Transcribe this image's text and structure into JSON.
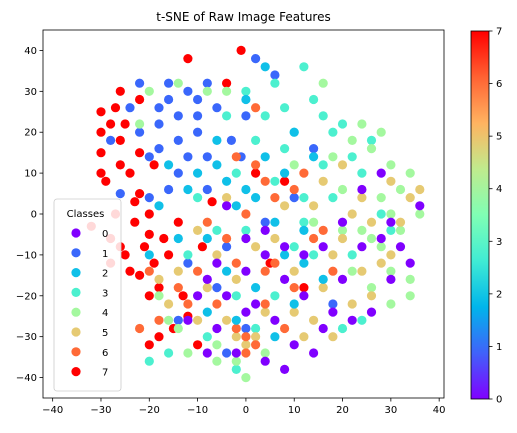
{
  "chart_data": {
    "type": "scatter",
    "title": "t-SNE of Raw Image Features",
    "xlabel": "",
    "ylabel": "",
    "xlim": [
      -42,
      41
    ],
    "ylim": [
      -45,
      45
    ],
    "x_ticks": [
      -40,
      -30,
      -20,
      -10,
      0,
      10,
      20,
      30,
      40
    ],
    "y_ticks": [
      -40,
      -30,
      -20,
      -10,
      0,
      10,
      20,
      30,
      40
    ],
    "grid": false,
    "colormap": "rainbow",
    "colorbar": {
      "min": 0,
      "max": 7,
      "ticks": [
        0,
        1,
        2,
        3,
        4,
        5,
        6,
        7
      ],
      "stops": [
        "#8000ff",
        "#4062fa",
        "#00b5eb",
        "#40ecd4",
        "#80ffb4",
        "#c0eb8d",
        "#ffb360",
        "#ff6232",
        "#ff0000"
      ]
    },
    "legend": {
      "title": "Classes",
      "placement": "lower-left",
      "entries": [
        {
          "label": "0",
          "color": "#8000ff"
        },
        {
          "label": "1",
          "color": "#3a67fb"
        },
        {
          "label": "2",
          "color": "#10c0e8"
        },
        {
          "label": "3",
          "color": "#4cf0cf"
        },
        {
          "label": "4",
          "color": "#a4f89f"
        },
        {
          "label": "5",
          "color": "#e6ca73"
        },
        {
          "label": "6",
          "color": "#ff6a37"
        },
        {
          "label": "7",
          "color": "#ff0000"
        }
      ]
    },
    "series": [
      {
        "label": "7",
        "color": "#ff0000",
        "points": [
          [
            -26,
            18
          ],
          [
            -28,
            22
          ],
          [
            -24,
            10
          ],
          [
            -30,
            15
          ],
          [
            -22,
            5
          ],
          [
            -20,
            -5
          ],
          [
            -26,
            -8
          ],
          [
            -28,
            -12
          ],
          [
            -24,
            -14
          ],
          [
            -22,
            28
          ],
          [
            -30,
            25
          ],
          [
            -26,
            30
          ],
          [
            -14,
            -2
          ],
          [
            -16,
            -10
          ],
          [
            -18,
            -18
          ],
          [
            -12,
            -25
          ],
          [
            -10,
            -32
          ],
          [
            -18,
            -30
          ],
          [
            -20,
            -32
          ],
          [
            -22,
            15
          ],
          [
            -29,
            8
          ],
          [
            -32,
            -3
          ],
          [
            -27,
            0
          ],
          [
            -21,
            -8
          ],
          [
            -17,
            -6
          ],
          [
            -19,
            12
          ],
          [
            -12,
            38
          ],
          [
            -4,
            32
          ],
          [
            -1,
            40
          ],
          [
            -25,
            22
          ],
          [
            -19,
            -12
          ],
          [
            -20,
            -20
          ],
          [
            -9,
            -8
          ],
          [
            -7,
            3
          ],
          [
            -23,
            -2
          ],
          [
            -28,
            -6
          ],
          [
            -30,
            20
          ],
          [
            -27,
            26
          ],
          [
            2,
            10
          ],
          [
            8,
            8
          ],
          [
            5,
            -12
          ],
          [
            12,
            -18
          ],
          [
            -22,
            -15
          ],
          [
            -15,
            -28
          ],
          [
            -13,
            -20
          ],
          [
            -25,
            -10
          ],
          [
            -23,
            3
          ],
          [
            -20,
            0
          ],
          [
            -30,
            10
          ],
          [
            -26,
            12
          ]
        ]
      },
      {
        "label": "1",
        "color": "#3a67fb",
        "points": [
          [
            -22,
            20
          ],
          [
            -18,
            22
          ],
          [
            -14,
            24
          ],
          [
            -10,
            20
          ],
          [
            -16,
            28
          ],
          [
            -12,
            30
          ],
          [
            -20,
            14
          ],
          [
            -8,
            14
          ],
          [
            -14,
            10
          ],
          [
            -18,
            16
          ],
          [
            -24,
            26
          ],
          [
            -6,
            26
          ],
          [
            -10,
            28
          ],
          [
            0,
            24
          ],
          [
            -26,
            5
          ],
          [
            -20,
            4
          ],
          [
            2,
            38
          ],
          [
            -8,
            6
          ],
          [
            -4,
            -8
          ],
          [
            0,
            -28
          ],
          [
            -4,
            -34
          ],
          [
            -14,
            -26
          ],
          [
            -1,
            14
          ],
          [
            -3,
            18
          ],
          [
            -12,
            14
          ],
          [
            -16,
            6
          ],
          [
            -22,
            32
          ],
          [
            -28,
            18
          ],
          [
            -8,
            32
          ],
          [
            4,
            -2
          ],
          [
            10,
            4
          ],
          [
            18,
            -22
          ],
          [
            14,
            16
          ],
          [
            -6,
            -18
          ],
          [
            -12,
            -12
          ],
          [
            6,
            34
          ],
          [
            -16,
            32
          ],
          [
            -18,
            26
          ],
          [
            -14,
            18
          ],
          [
            -10,
            24
          ]
        ]
      },
      {
        "label": "3",
        "color": "#4cf0cf",
        "points": [
          [
            10,
            20
          ],
          [
            14,
            28
          ],
          [
            6,
            32
          ],
          [
            18,
            20
          ],
          [
            22,
            14
          ],
          [
            8,
            16
          ],
          [
            0,
            30
          ],
          [
            4,
            24
          ],
          [
            12,
            36
          ],
          [
            16,
            12
          ],
          [
            20,
            22
          ],
          [
            24,
            10
          ],
          [
            -2,
            10
          ],
          [
            2,
            18
          ],
          [
            28,
            0
          ],
          [
            30,
            -4
          ],
          [
            10,
            -8
          ],
          [
            6,
            -20
          ],
          [
            -2,
            -20
          ],
          [
            -8,
            -30
          ],
          [
            -16,
            -34
          ],
          [
            -20,
            -36
          ],
          [
            14,
            -10
          ],
          [
            20,
            -28
          ],
          [
            24,
            -26
          ],
          [
            -12,
            -10
          ],
          [
            -6,
            -4
          ],
          [
            6,
            8
          ],
          [
            12,
            4
          ],
          [
            26,
            18
          ],
          [
            -10,
            4
          ],
          [
            0,
            -4
          ],
          [
            8,
            26
          ],
          [
            18,
            4
          ],
          [
            -4,
            24
          ],
          [
            22,
            -10
          ],
          [
            12,
            -2
          ],
          [
            16,
            24
          ],
          [
            2,
            -28
          ],
          [
            -2,
            -38
          ]
        ]
      },
      {
        "label": "4",
        "color": "#a4f89f",
        "points": [
          [
            26,
            16
          ],
          [
            30,
            12
          ],
          [
            28,
            20
          ],
          [
            34,
            10
          ],
          [
            32,
            -4
          ],
          [
            30,
            -14
          ],
          [
            34,
            -20
          ],
          [
            30,
            -22
          ],
          [
            26,
            -18
          ],
          [
            22,
            18
          ],
          [
            -20,
            30
          ],
          [
            -22,
            22
          ],
          [
            -14,
            32
          ],
          [
            -18,
            -20
          ],
          [
            -14,
            -28
          ],
          [
            -12,
            -34
          ],
          [
            -6,
            -36
          ],
          [
            -2,
            -36
          ],
          [
            0,
            -40
          ],
          [
            4,
            -34
          ],
          [
            24,
            -4
          ],
          [
            28,
            4
          ],
          [
            30,
            0
          ],
          [
            18,
            14
          ],
          [
            20,
            6
          ],
          [
            -8,
            30
          ],
          [
            -4,
            30
          ],
          [
            14,
            -2
          ],
          [
            22,
            -14
          ],
          [
            32,
            6
          ],
          [
            36,
            0
          ],
          [
            28,
            -8
          ],
          [
            34,
            -16
          ],
          [
            -6,
            -32
          ],
          [
            16,
            32
          ],
          [
            24,
            22
          ],
          [
            -16,
            -26
          ],
          [
            10,
            12
          ],
          [
            26,
            -6
          ],
          [
            20,
            -4
          ]
        ]
      },
      {
        "label": "5",
        "color": "#e6ca73",
        "points": [
          [
            20,
            -6
          ],
          [
            24,
            -14
          ],
          [
            16,
            -18
          ],
          [
            28,
            -12
          ],
          [
            22,
            -22
          ],
          [
            14,
            -26
          ],
          [
            10,
            -14
          ],
          [
            18,
            -10
          ],
          [
            26,
            -2
          ],
          [
            30,
            8
          ],
          [
            34,
            4
          ],
          [
            36,
            6
          ],
          [
            -14,
            -14
          ],
          [
            -8,
            -18
          ],
          [
            -10,
            -26
          ],
          [
            -2,
            -16
          ],
          [
            4,
            -24
          ],
          [
            2,
            -30
          ],
          [
            -2,
            -30
          ],
          [
            0,
            -32
          ],
          [
            -4,
            -26
          ],
          [
            12,
            -30
          ],
          [
            20,
            12
          ],
          [
            24,
            4
          ],
          [
            6,
            -6
          ],
          [
            2,
            -8
          ],
          [
            -6,
            -10
          ],
          [
            -10,
            -4
          ],
          [
            -18,
            -16
          ],
          [
            -16,
            -22
          ],
          [
            14,
            2
          ],
          [
            10,
            -24
          ],
          [
            18,
            -30
          ],
          [
            26,
            -20
          ],
          [
            30,
            -10
          ],
          [
            -4,
            4
          ],
          [
            8,
            2
          ],
          [
            16,
            8
          ],
          [
            22,
            0
          ],
          [
            32,
            -2
          ]
        ]
      },
      {
        "label": "6",
        "color": "#ff6a37",
        "points": [
          [
            0,
            -30
          ],
          [
            2,
            -32
          ],
          [
            0,
            -34
          ],
          [
            -2,
            -28
          ],
          [
            4,
            -22
          ],
          [
            6,
            4
          ],
          [
            10,
            6
          ],
          [
            4,
            8
          ],
          [
            -4,
            -6
          ],
          [
            -10,
            -14
          ],
          [
            -14,
            -18
          ],
          [
            -20,
            -14
          ],
          [
            14,
            -6
          ],
          [
            18,
            -14
          ],
          [
            10,
            -18
          ],
          [
            -2,
            14
          ],
          [
            2,
            26
          ],
          [
            -18,
            -26
          ],
          [
            -22,
            -28
          ],
          [
            6,
            -12
          ],
          [
            0,
            0
          ],
          [
            -6,
            -22
          ],
          [
            -8,
            -2
          ],
          [
            12,
            10
          ],
          [
            16,
            -4
          ],
          [
            8,
            -28
          ],
          [
            -12,
            -22
          ],
          [
            2,
            12
          ],
          [
            4,
            -14
          ],
          [
            -2,
            -12
          ]
        ]
      },
      {
        "label": "2",
        "color": "#10c0e8",
        "points": [
          [
            -8,
            -6
          ],
          [
            -2,
            2
          ],
          [
            4,
            14
          ],
          [
            8,
            10
          ],
          [
            12,
            -4
          ],
          [
            -6,
            18
          ],
          [
            0,
            6
          ],
          [
            6,
            -2
          ],
          [
            -10,
            10
          ],
          [
            -4,
            -14
          ],
          [
            2,
            -18
          ],
          [
            -14,
            -6
          ],
          [
            -12,
            6
          ],
          [
            10,
            20
          ],
          [
            14,
            14
          ],
          [
            -16,
            12
          ],
          [
            0,
            28
          ],
          [
            4,
            36
          ],
          [
            -8,
            -24
          ],
          [
            6,
            -30
          ],
          [
            -2,
            -26
          ],
          [
            10,
            -22
          ],
          [
            16,
            -16
          ],
          [
            -20,
            -10
          ],
          [
            -18,
            2
          ],
          [
            8,
            -10
          ],
          [
            12,
            -12
          ],
          [
            -4,
            8
          ],
          [
            2,
            4
          ],
          [
            -6,
            12
          ]
        ]
      },
      {
        "label": "0",
        "color": "#8000ff",
        "points": [
          [
            -4,
            -20
          ],
          [
            0,
            -14
          ],
          [
            4,
            -10
          ],
          [
            -8,
            -16
          ],
          [
            2,
            -22
          ],
          [
            8,
            -16
          ],
          [
            6,
            -26
          ],
          [
            0,
            -24
          ],
          [
            -6,
            -28
          ],
          [
            12,
            -20
          ],
          [
            16,
            -28
          ],
          [
            10,
            -32
          ],
          [
            4,
            -36
          ],
          [
            -2,
            -34
          ],
          [
            20,
            -16
          ],
          [
            24,
            -8
          ],
          [
            28,
            -6
          ],
          [
            30,
            -16
          ],
          [
            26,
            -24
          ],
          [
            22,
            -26
          ],
          [
            18,
            -24
          ],
          [
            14,
            -34
          ],
          [
            8,
            -38
          ],
          [
            -10,
            -20
          ],
          [
            -12,
            -26
          ],
          [
            -8,
            -34
          ],
          [
            -4,
            2
          ],
          [
            0,
            -6
          ],
          [
            4,
            -4
          ],
          [
            8,
            -8
          ],
          [
            12,
            -10
          ],
          [
            16,
            -8
          ],
          [
            20,
            -2
          ],
          [
            24,
            6
          ],
          [
            28,
            10
          ],
          [
            30,
            -2
          ],
          [
            32,
            -8
          ],
          [
            34,
            -12
          ],
          [
            36,
            2
          ],
          [
            -6,
            -12
          ]
        ]
      }
    ]
  }
}
